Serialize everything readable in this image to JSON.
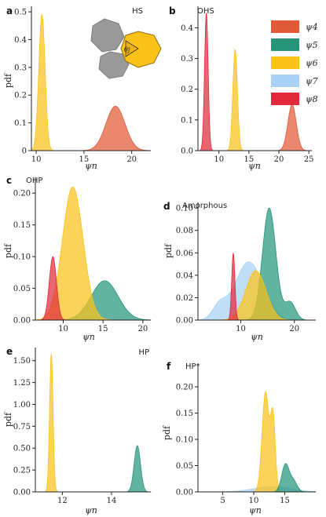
{
  "colors": {
    "psi4": "#e05a37",
    "psi5": "#26957a",
    "psi6": "#fbc21a",
    "psi7": "#a8d1f5",
    "psi8": "#e0293c"
  },
  "legend": {
    "placement": "top-right of panel b",
    "items": [
      {
        "key": "psi4",
        "label": "ψ4"
      },
      {
        "key": "psi5",
        "label": "ψ5"
      },
      {
        "key": "psi6",
        "label": "ψ6"
      },
      {
        "key": "psi7",
        "label": "ψ7"
      },
      {
        "key": "psi8",
        "label": "ψ8"
      }
    ]
  },
  "inset": {
    "label": "θj"
  },
  "chart_data": [
    {
      "id": "a",
      "letter": "a",
      "title": "HS",
      "type": "area",
      "xlabel": "ψn",
      "ylabel": "pdf",
      "xlim": [
        9.5,
        22
      ],
      "ylim": [
        0,
        0.52
      ],
      "xticks": [
        10,
        15,
        20
      ],
      "yticks": [
        0,
        0.1,
        0.2,
        0.3,
        0.4,
        0.5
      ],
      "xtick_labels": [
        "10",
        "15",
        "20"
      ],
      "ytick_labels": [
        "0",
        "0.1",
        "0.2",
        "0.3",
        "0.4",
        "0.5"
      ],
      "series": [
        {
          "key": "psi4",
          "peaks": [
            {
              "mu": 18.3,
              "sigma": 1.0,
              "amp": 0.16
            }
          ]
        },
        {
          "key": "psi6",
          "peaks": [
            {
              "mu": 10.6,
              "sigma": 0.33,
              "amp": 0.49
            }
          ]
        }
      ]
    },
    {
      "id": "b",
      "letter": "b",
      "title": "OHS",
      "type": "area",
      "xlabel": "ψn",
      "ylabel": "",
      "xlim": [
        6.5,
        25.5
      ],
      "ylim": [
        0,
        0.47
      ],
      "xticks": [
        10,
        15,
        20,
        25
      ],
      "yticks": [
        0,
        0.1,
        0.2,
        0.3,
        0.4
      ],
      "xtick_labels": [
        "10",
        "15",
        "20",
        "25"
      ],
      "ytick_labels": [
        "0.0",
        "0.1",
        "0.2",
        "0.3",
        "0.4"
      ],
      "series": [
        {
          "key": "psi4",
          "peaks": [
            {
              "mu": 22.2,
              "sigma": 0.7,
              "amp": 0.15
            }
          ]
        },
        {
          "key": "psi6",
          "peaks": [
            {
              "mu": 12.7,
              "sigma": 0.38,
              "amp": 0.33
            }
          ]
        },
        {
          "key": "psi8",
          "peaks": [
            {
              "mu": 7.9,
              "sigma": 0.3,
              "amp": 0.45
            }
          ]
        }
      ]
    },
    {
      "id": "c",
      "letter": "c",
      "title": "OHP",
      "type": "area",
      "xlabel": "ψn",
      "ylabel": "pdf",
      "xlim": [
        6.5,
        21
      ],
      "ylim": [
        0,
        0.225
      ],
      "xticks": [
        10,
        15,
        20
      ],
      "yticks": [
        0,
        0.05,
        0.1,
        0.15,
        0.2
      ],
      "xtick_labels": [
        "10",
        "15",
        "20"
      ],
      "ytick_labels": [
        "0.00",
        "0.05",
        "0.10",
        "0.15",
        "0.20"
      ],
      "series": [
        {
          "key": "psi5",
          "peaks": [
            {
              "mu": 15.2,
              "sigma": 1.7,
              "amp": 0.062
            }
          ]
        },
        {
          "key": "psi6",
          "peaks": [
            {
              "mu": 11.2,
              "sigma": 1.3,
              "amp": 0.21
            }
          ]
        },
        {
          "key": "psi8",
          "peaks": [
            {
              "mu": 8.7,
              "sigma": 0.45,
              "amp": 0.1
            }
          ]
        }
      ]
    },
    {
      "id": "d",
      "letter": "d",
      "title": "Amorphous",
      "type": "area",
      "xlabel": "ψn",
      "ylabel": "pdf",
      "xlim": [
        2,
        24
      ],
      "ylim": [
        0,
        0.105
      ],
      "xticks": [
        10,
        20
      ],
      "yticks": [
        0,
        0.02,
        0.04,
        0.06,
        0.08,
        0.1
      ],
      "xtick_labels": [
        "10",
        "20"
      ],
      "ytick_labels": [
        "0.00",
        "0.02",
        "0.04",
        "0.06",
        "0.08",
        "0.10"
      ],
      "series": [
        {
          "key": "psi7",
          "peaks": [
            {
              "mu": 11.5,
              "sigma": 2.6,
              "amp": 0.052
            },
            {
              "mu": 6.0,
              "sigma": 1.3,
              "amp": 0.012
            }
          ]
        },
        {
          "key": "psi5",
          "peaks": [
            {
              "mu": 15.3,
              "sigma": 1.25,
              "amp": 0.1
            },
            {
              "mu": 19.2,
              "sigma": 1.0,
              "amp": 0.016
            }
          ]
        },
        {
          "key": "psi6",
          "peaks": [
            {
              "mu": 12.8,
              "sigma": 1.9,
              "amp": 0.044
            }
          ]
        },
        {
          "key": "psi8",
          "peaks": [
            {
              "mu": 8.6,
              "sigma": 0.3,
              "amp": 0.06
            }
          ]
        }
      ]
    },
    {
      "id": "e",
      "letter": "e",
      "title": "HP",
      "type": "area",
      "xlabel": "ψn",
      "ylabel": "pdf",
      "xlim": [
        10.9,
        15.6
      ],
      "ylim": [
        0,
        1.65
      ],
      "xticks": [
        12,
        14
      ],
      "yticks": [
        0,
        0.25,
        0.5,
        0.75,
        1.0,
        1.25,
        1.5
      ],
      "xtick_labels": [
        "12",
        "14"
      ],
      "ytick_labels": [
        "0.00",
        "0.25",
        "0.50",
        "0.75",
        "1.00",
        "1.25",
        "1.50"
      ],
      "series": [
        {
          "key": "psi5",
          "peaks": [
            {
              "mu": 15.05,
              "sigma": 0.13,
              "amp": 0.53
            }
          ]
        },
        {
          "key": "psi6",
          "peaks": [
            {
              "mu": 11.55,
              "sigma": 0.07,
              "amp": 1.58
            }
          ]
        }
      ]
    },
    {
      "id": "f",
      "letter": "f",
      "title": "HP*",
      "type": "area",
      "xlabel": "ψn",
      "ylabel": "pdf",
      "xlim": [
        1,
        20
      ],
      "ylim": [
        0,
        0.245
      ],
      "xticks": [
        5,
        10,
        15
      ],
      "yticks": [
        0,
        0.05,
        0.1,
        0.15,
        0.2
      ],
      "xtick_labels": [
        "5",
        "10",
        "15"
      ],
      "ytick_labels": [
        "0.00",
        "0.05",
        "0.10",
        "0.15",
        "0.20"
      ],
      "series": [
        {
          "key": "psi7",
          "peaks": [
            {
              "mu": 13.0,
              "sigma": 3.0,
              "amp": 0.01
            }
          ]
        },
        {
          "key": "psi6",
          "peaks": [
            {
              "mu": 11.9,
              "sigma": 0.55,
              "amp": 0.19
            },
            {
              "mu": 13.1,
              "sigma": 0.38,
              "amp": 0.14
            }
          ]
        },
        {
          "key": "psi5",
          "peaks": [
            {
              "mu": 15.1,
              "sigma": 0.6,
              "amp": 0.052
            },
            {
              "mu": 16.4,
              "sigma": 0.6,
              "amp": 0.02
            }
          ]
        }
      ]
    }
  ]
}
